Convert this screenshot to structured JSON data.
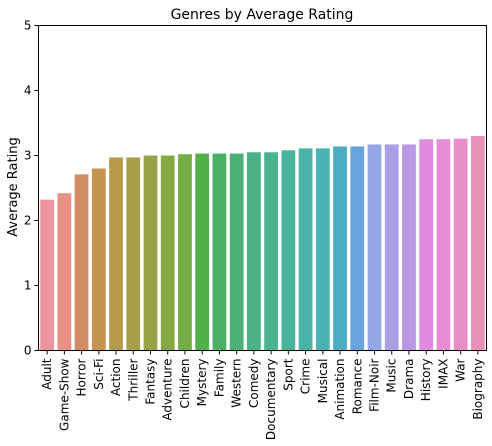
{
  "chart_data": {
    "type": "bar",
    "title": "Genres by Average Rating",
    "xlabel": "",
    "ylabel": "Average Rating",
    "ylim": [
      0,
      5
    ],
    "yticks": [
      0,
      1,
      2,
      3,
      4,
      5
    ],
    "grid": false,
    "categories": [
      "Adult",
      "Game-Show",
      "Horror",
      "Sci-Fi",
      "Action",
      "Thriller",
      "Fantasy",
      "Adventure",
      "Children",
      "Mystery",
      "Family",
      "Western",
      "Comedy",
      "Documentary",
      "Sport",
      "Crime",
      "Musical",
      "Animation",
      "Romance",
      "Film-Noir",
      "Music",
      "Drama",
      "History",
      "IMAX",
      "War",
      "Biography"
    ],
    "values": [
      2.32,
      2.42,
      2.71,
      2.8,
      2.97,
      2.97,
      3.0,
      3.0,
      3.02,
      3.03,
      3.03,
      3.03,
      3.05,
      3.05,
      3.08,
      3.11,
      3.11,
      3.14,
      3.14,
      3.17,
      3.17,
      3.17,
      3.25,
      3.25,
      3.26,
      3.3
    ],
    "colors": [
      "#ea969c",
      "#e99185",
      "#d28c65",
      "#c59453",
      "#b59a4a",
      "#a69f48",
      "#98a347",
      "#87a847",
      "#75ad47",
      "#51b048",
      "#4ab064",
      "#4ab277",
      "#4bb186",
      "#4bb391",
      "#4ab39b",
      "#49b3a7",
      "#4ab1b5",
      "#4cacc4",
      "#6aa4e0",
      "#95a6e4",
      "#a89fe5",
      "#bb97e5",
      "#e08ae0",
      "#e68dd6",
      "#e88ec9",
      "#e992b9"
    ]
  }
}
